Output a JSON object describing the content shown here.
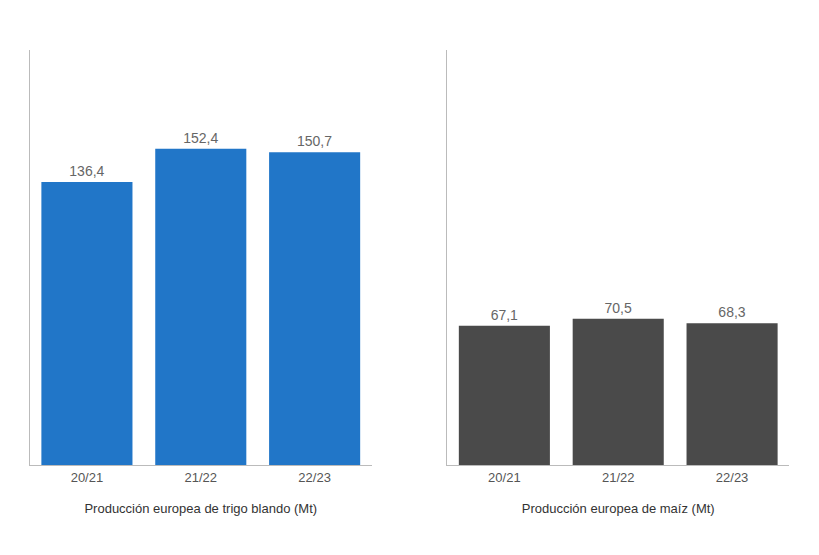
{
  "chart_data": [
    {
      "type": "bar",
      "categories": [
        "20/21",
        "21/22",
        "22/23"
      ],
      "values": [
        136.4,
        152.4,
        150.7
      ],
      "value_labels": [
        "136,4",
        "152,4",
        "150,7"
      ],
      "data_labels": true,
      "color": "#2176C8",
      "xlabel": "Producción europea de trigo blando (Mt)",
      "ylim": [
        0,
        200
      ],
      "tick_labels": "x",
      "grid": false
    },
    {
      "type": "bar",
      "categories": [
        "20/21",
        "21/22",
        "22/23"
      ],
      "values": [
        67.1,
        70.5,
        68.3
      ],
      "value_labels": [
        "67,1",
        "70,5",
        "68,3"
      ],
      "data_labels": true,
      "color": "#4A4A4A",
      "xlabel": "Producción europea de maíz (Mt)",
      "ylim": [
        0,
        200
      ],
      "tick_labels": "x",
      "grid": false
    }
  ]
}
